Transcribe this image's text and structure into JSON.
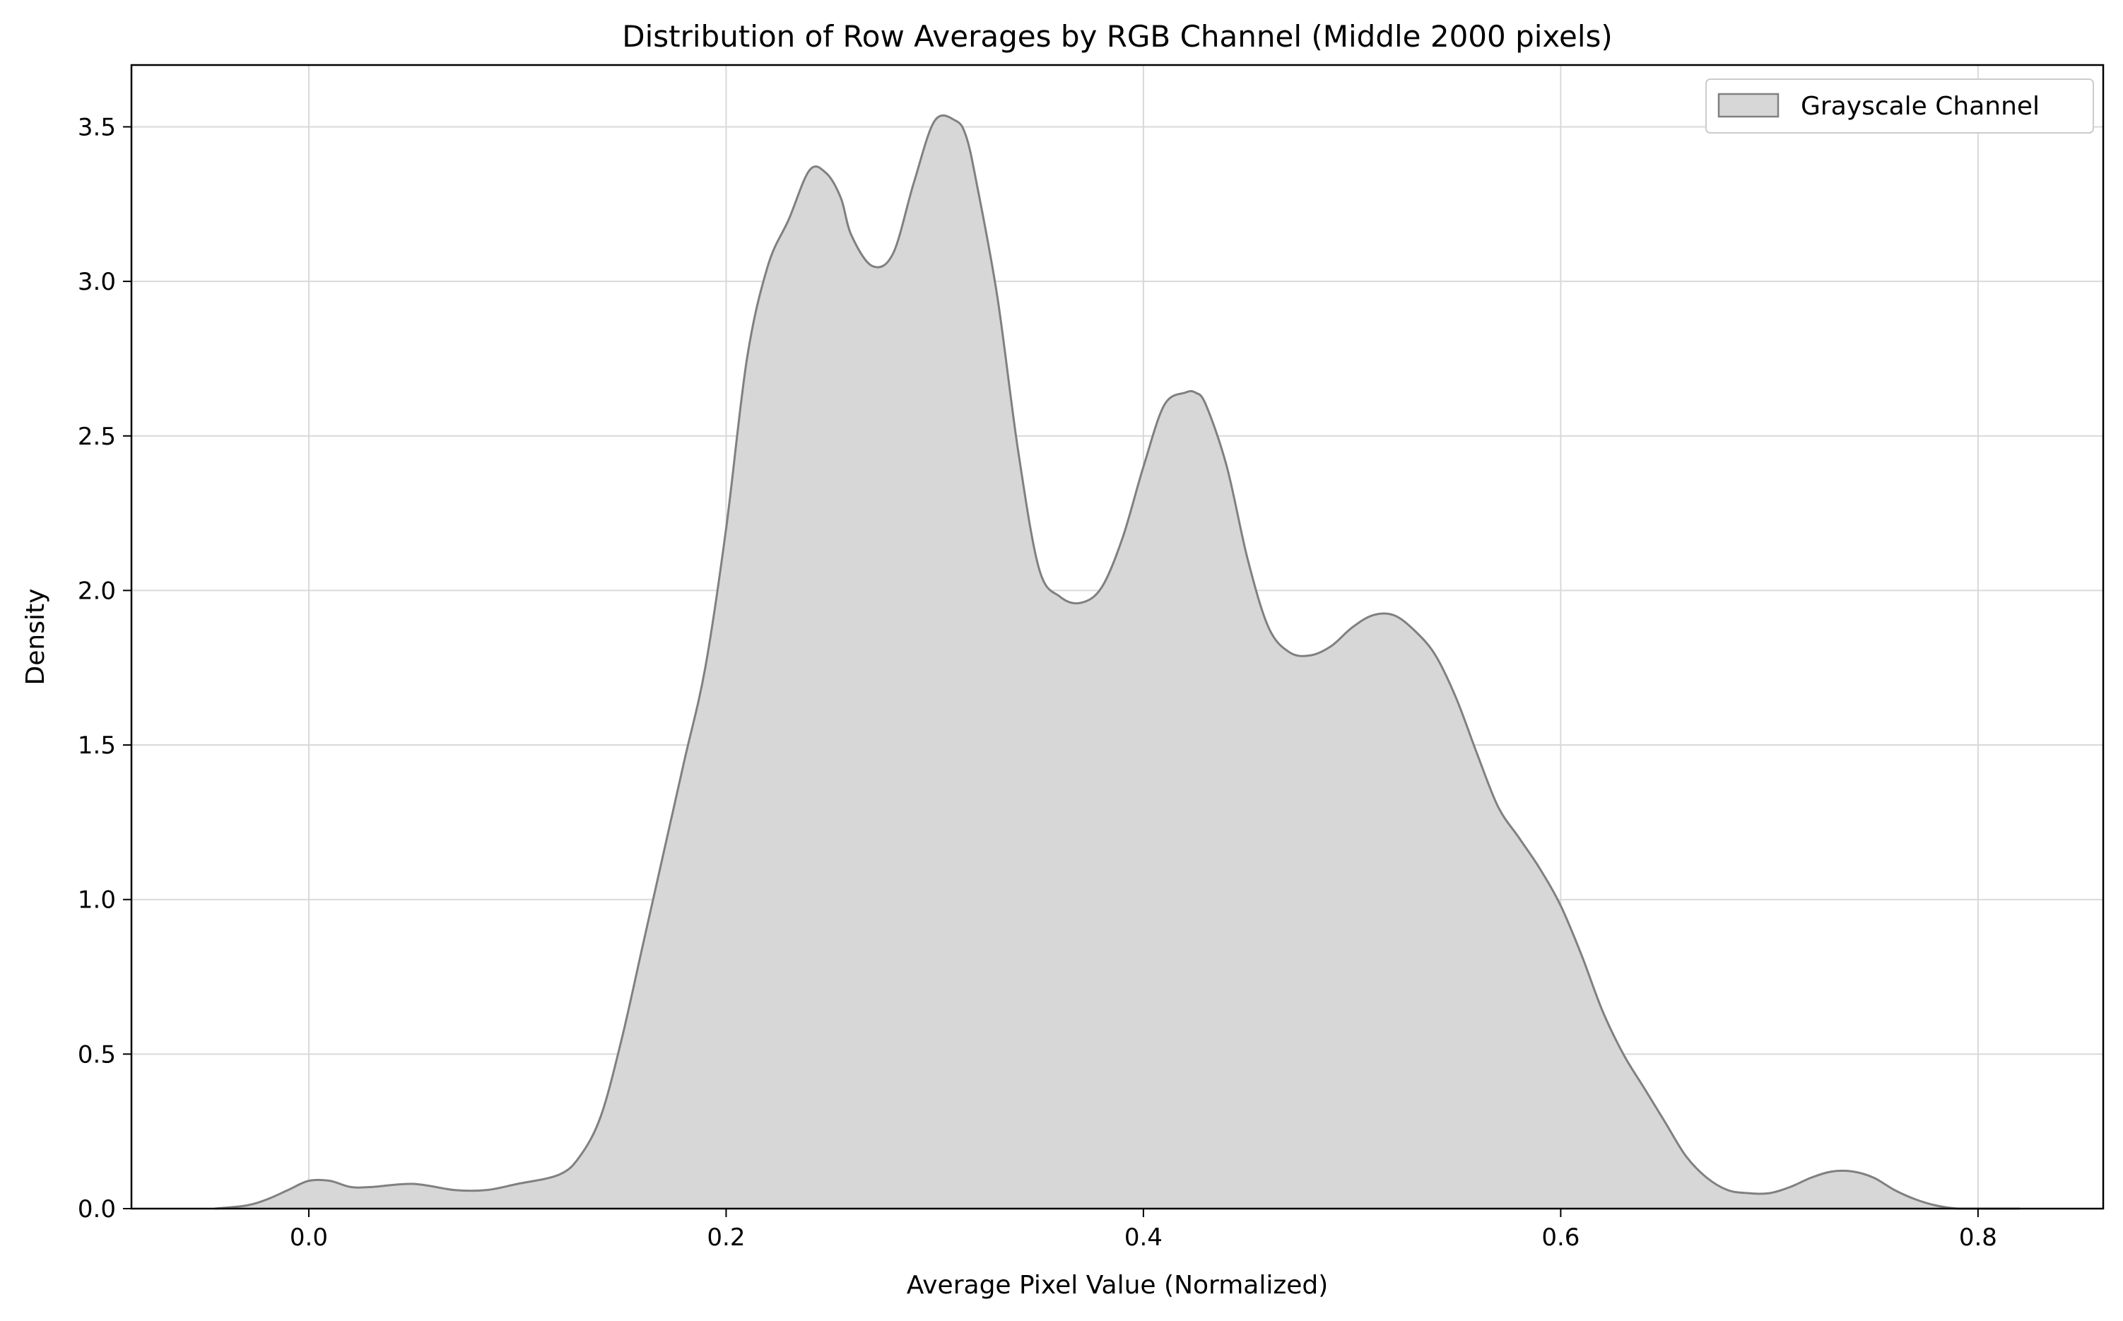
{
  "chart_data": {
    "type": "area",
    "title": "Distribution of Row Averages by RGB Channel (Middle 2000 pixels)",
    "xlabel": "Average Pixel Value (Normalized)",
    "ylabel": "Density",
    "xlim": [
      -0.085,
      0.86
    ],
    "ylim": [
      0.0,
      3.7
    ],
    "xticks": [
      0.0,
      0.2,
      0.4,
      0.6,
      0.8
    ],
    "xtick_labels": [
      "0.0",
      "0.2",
      "0.4",
      "0.6",
      "0.8"
    ],
    "yticks": [
      0.0,
      0.5,
      1.0,
      1.5,
      2.0,
      2.5,
      3.0,
      3.5
    ],
    "ytick_labels": [
      "0.0",
      "0.5",
      "1.0",
      "1.5",
      "2.0",
      "2.5",
      "3.0",
      "3.5"
    ],
    "grid": true,
    "legend_position": "top-right",
    "series": [
      {
        "name": "Grayscale Channel",
        "fill_color": "#d7d7d7",
        "line_color": "#808080",
        "x": [
          -0.045,
          -0.03,
          -0.02,
          -0.01,
          0.0,
          0.01,
          0.02,
          0.03,
          0.05,
          0.07,
          0.085,
          0.1,
          0.12,
          0.13,
          0.14,
          0.15,
          0.16,
          0.17,
          0.18,
          0.19,
          0.2,
          0.21,
          0.22,
          0.23,
          0.24,
          0.248,
          0.255,
          0.26,
          0.27,
          0.28,
          0.29,
          0.3,
          0.31,
          0.315,
          0.32,
          0.33,
          0.34,
          0.35,
          0.36,
          0.37,
          0.38,
          0.39,
          0.4,
          0.41,
          0.42,
          0.425,
          0.43,
          0.44,
          0.45,
          0.46,
          0.47,
          0.48,
          0.49,
          0.5,
          0.51,
          0.52,
          0.53,
          0.54,
          0.55,
          0.56,
          0.57,
          0.58,
          0.59,
          0.6,
          0.61,
          0.62,
          0.63,
          0.64,
          0.65,
          0.66,
          0.67,
          0.68,
          0.69,
          0.7,
          0.71,
          0.72,
          0.73,
          0.74,
          0.75,
          0.76,
          0.77,
          0.78,
          0.79,
          0.8,
          0.82
        ],
        "y": [
          0.0,
          0.01,
          0.03,
          0.06,
          0.09,
          0.09,
          0.07,
          0.07,
          0.08,
          0.06,
          0.06,
          0.08,
          0.11,
          0.17,
          0.3,
          0.55,
          0.85,
          1.15,
          1.45,
          1.75,
          2.2,
          2.75,
          3.05,
          3.2,
          3.36,
          3.35,
          3.27,
          3.15,
          3.05,
          3.09,
          3.32,
          3.52,
          3.52,
          3.47,
          3.32,
          2.95,
          2.45,
          2.07,
          1.98,
          1.96,
          2.01,
          2.17,
          2.4,
          2.6,
          2.64,
          2.64,
          2.6,
          2.4,
          2.1,
          1.88,
          1.8,
          1.79,
          1.82,
          1.88,
          1.92,
          1.92,
          1.87,
          1.79,
          1.65,
          1.47,
          1.3,
          1.2,
          1.1,
          0.98,
          0.82,
          0.64,
          0.5,
          0.39,
          0.28,
          0.17,
          0.1,
          0.06,
          0.05,
          0.05,
          0.07,
          0.1,
          0.12,
          0.12,
          0.1,
          0.06,
          0.03,
          0.01,
          0.0,
          0.0,
          0.0
        ]
      }
    ]
  }
}
